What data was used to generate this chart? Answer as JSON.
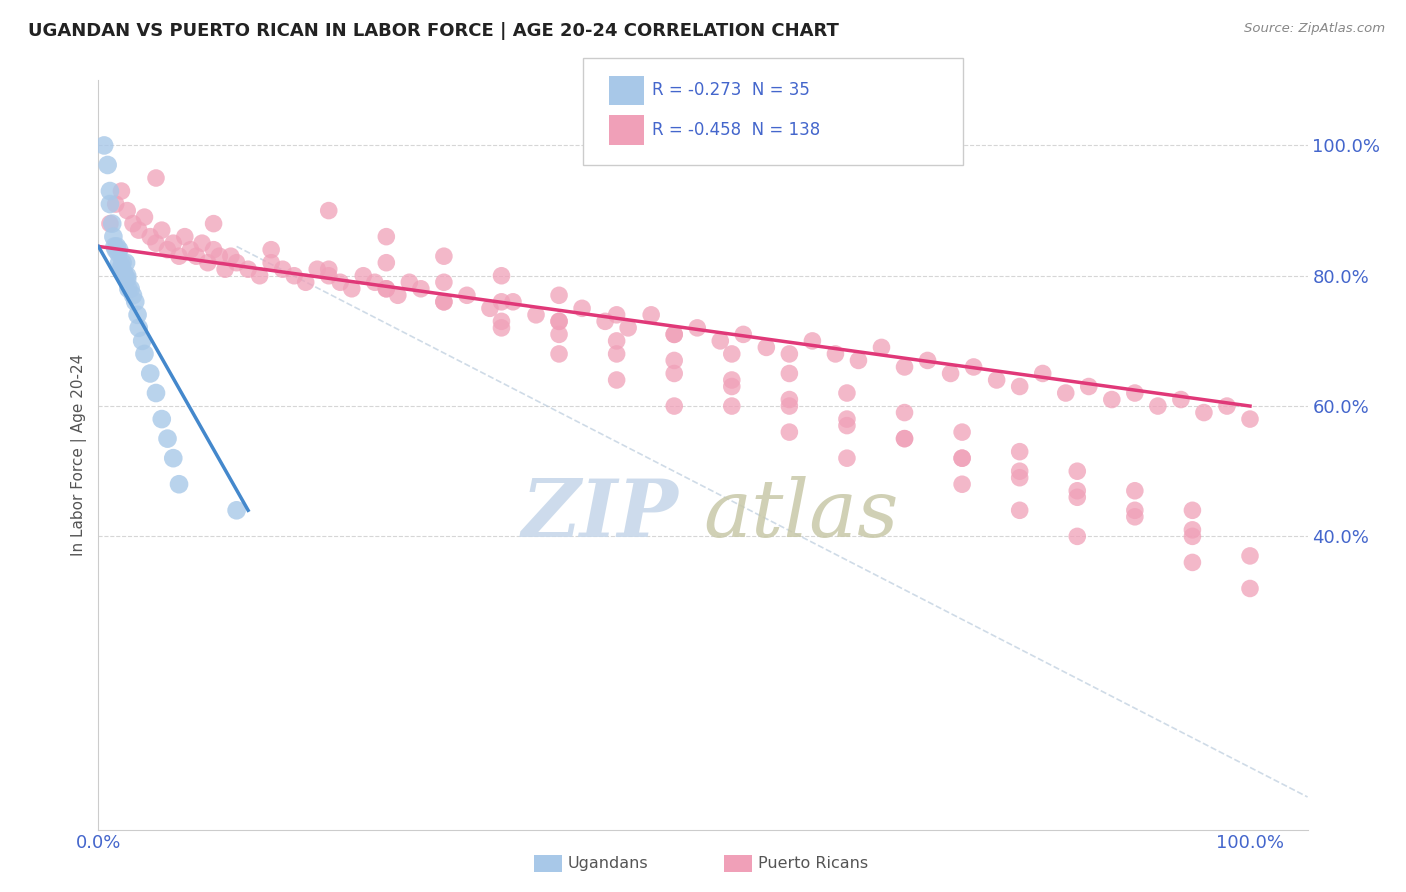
{
  "title": "UGANDAN VS PUERTO RICAN IN LABOR FORCE | AGE 20-24 CORRELATION CHART",
  "source_text": "Source: ZipAtlas.com",
  "ylabel": "In Labor Force | Age 20-24",
  "legend_R_uganda": "-0.273",
  "legend_N_uganda": "35",
  "legend_R_puerto": "-0.458",
  "legend_N_puerto": "138",
  "ugandan_color": "#a8c8e8",
  "puerto_color": "#f0a0b8",
  "ugandan_line_color": "#4488cc",
  "puerto_line_color": "#e03878",
  "background_color": "#ffffff",
  "tick_color": "#4466cc",
  "grid_color": "#cccccc",
  "watermark_zip_color": "#c8d8ea",
  "watermark_atlas_color": "#c8c8a8",
  "ugandan_x": [
    0.005,
    0.008,
    0.01,
    0.01,
    0.012,
    0.013,
    0.014,
    0.015,
    0.016,
    0.017,
    0.018,
    0.018,
    0.02,
    0.02,
    0.021,
    0.022,
    0.023,
    0.024,
    0.025,
    0.025,
    0.026,
    0.028,
    0.03,
    0.032,
    0.034,
    0.035,
    0.038,
    0.04,
    0.045,
    0.05,
    0.055,
    0.06,
    0.065,
    0.07,
    0.12
  ],
  "ugandan_y": [
    1.0,
    0.97,
    0.93,
    0.91,
    0.88,
    0.86,
    0.845,
    0.84,
    0.845,
    0.835,
    0.84,
    0.82,
    0.815,
    0.81,
    0.82,
    0.805,
    0.8,
    0.82,
    0.8,
    0.795,
    0.78,
    0.78,
    0.77,
    0.76,
    0.74,
    0.72,
    0.7,
    0.68,
    0.65,
    0.62,
    0.58,
    0.55,
    0.52,
    0.48,
    0.44
  ],
  "puerto_x": [
    0.01,
    0.015,
    0.02,
    0.025,
    0.03,
    0.035,
    0.04,
    0.045,
    0.05,
    0.055,
    0.06,
    0.065,
    0.07,
    0.075,
    0.08,
    0.085,
    0.09,
    0.095,
    0.1,
    0.105,
    0.11,
    0.115,
    0.12,
    0.13,
    0.14,
    0.15,
    0.16,
    0.17,
    0.18,
    0.19,
    0.2,
    0.21,
    0.22,
    0.23,
    0.24,
    0.25,
    0.26,
    0.27,
    0.28,
    0.3,
    0.32,
    0.34,
    0.36,
    0.38,
    0.4,
    0.42,
    0.44,
    0.46,
    0.48,
    0.5,
    0.52,
    0.54,
    0.56,
    0.58,
    0.6,
    0.62,
    0.64,
    0.66,
    0.68,
    0.7,
    0.72,
    0.74,
    0.76,
    0.78,
    0.8,
    0.82,
    0.84,
    0.86,
    0.88,
    0.9,
    0.92,
    0.94,
    0.96,
    0.98,
    1.0,
    0.05,
    0.1,
    0.15,
    0.2,
    0.25,
    0.3,
    0.35,
    0.4,
    0.45,
    0.5,
    0.55,
    0.6,
    0.65,
    0.7,
    0.75,
    0.8,
    0.85,
    0.9,
    0.95,
    0.2,
    0.25,
    0.3,
    0.35,
    0.4,
    0.45,
    0.5,
    0.55,
    0.6,
    0.65,
    0.7,
    0.75,
    0.8,
    0.85,
    0.9,
    0.95,
    0.25,
    0.35,
    0.45,
    0.55,
    0.65,
    0.75,
    0.85,
    0.95,
    0.3,
    0.4,
    0.5,
    0.6,
    0.7,
    0.8,
    0.9,
    1.0,
    0.35,
    0.55,
    0.75,
    0.95,
    0.4,
    0.6,
    0.8,
    1.0,
    0.45,
    0.65,
    0.85,
    0.5
  ],
  "puerto_y": [
    0.88,
    0.91,
    0.93,
    0.9,
    0.88,
    0.87,
    0.89,
    0.86,
    0.85,
    0.87,
    0.84,
    0.85,
    0.83,
    0.86,
    0.84,
    0.83,
    0.85,
    0.82,
    0.84,
    0.83,
    0.81,
    0.83,
    0.82,
    0.81,
    0.8,
    0.82,
    0.81,
    0.8,
    0.79,
    0.81,
    0.8,
    0.79,
    0.78,
    0.8,
    0.79,
    0.78,
    0.77,
    0.79,
    0.78,
    0.76,
    0.77,
    0.75,
    0.76,
    0.74,
    0.73,
    0.75,
    0.73,
    0.72,
    0.74,
    0.71,
    0.72,
    0.7,
    0.71,
    0.69,
    0.68,
    0.7,
    0.68,
    0.67,
    0.69,
    0.66,
    0.67,
    0.65,
    0.66,
    0.64,
    0.63,
    0.65,
    0.62,
    0.63,
    0.61,
    0.62,
    0.6,
    0.61,
    0.59,
    0.6,
    0.58,
    0.95,
    0.88,
    0.84,
    0.81,
    0.78,
    0.76,
    0.73,
    0.71,
    0.68,
    0.65,
    0.63,
    0.6,
    0.57,
    0.55,
    0.52,
    0.5,
    0.47,
    0.44,
    0.41,
    0.9,
    0.86,
    0.83,
    0.8,
    0.77,
    0.74,
    0.71,
    0.68,
    0.65,
    0.62,
    0.59,
    0.56,
    0.53,
    0.5,
    0.47,
    0.44,
    0.82,
    0.76,
    0.7,
    0.64,
    0.58,
    0.52,
    0.46,
    0.4,
    0.79,
    0.73,
    0.67,
    0.61,
    0.55,
    0.49,
    0.43,
    0.37,
    0.72,
    0.6,
    0.48,
    0.36,
    0.68,
    0.56,
    0.44,
    0.32,
    0.64,
    0.52,
    0.4,
    0.6
  ],
  "ugandan_line_x": [
    0.0,
    0.13
  ],
  "ugandan_line_y": [
    0.845,
    0.44
  ],
  "puerto_line_x": [
    0.0,
    1.0
  ],
  "puerto_line_y": [
    0.845,
    0.6
  ],
  "diag_line_x": [
    0.12,
    1.05
  ],
  "diag_line_y": [
    0.845,
    0.0
  ],
  "xlim": [
    0.0,
    1.05
  ],
  "ylim": [
    -0.05,
    1.1
  ],
  "ytick_positions": [
    0.4,
    0.6,
    0.8,
    1.0
  ],
  "ytick_labels": [
    "40.0%",
    "60.0%",
    "80.0%",
    "100.0%"
  ],
  "xtick_positions": [
    0.0,
    1.0
  ],
  "xtick_labels": [
    "0.0%",
    "100.0%"
  ]
}
